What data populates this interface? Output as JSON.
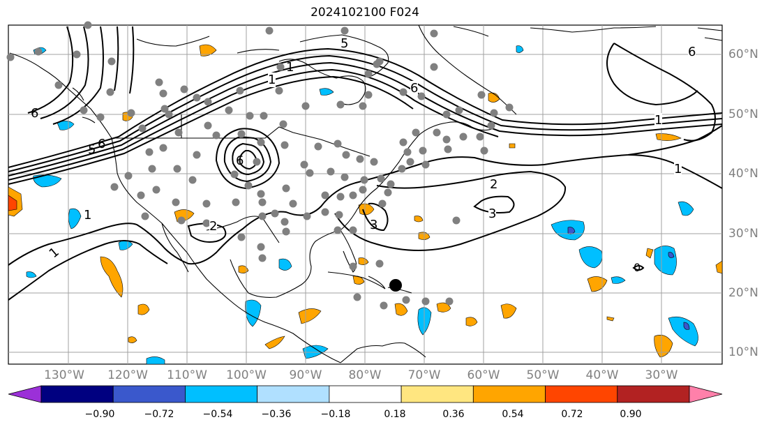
{
  "title": "2024102100 F024",
  "map": {
    "lon_labels": [
      "130°W",
      "120°W",
      "110°W",
      "100°W",
      "90°W",
      "80°W",
      "70°W",
      "60°W",
      "50°W",
      "40°W",
      "30°W"
    ],
    "lat_labels": [
      "60°N",
      "50°N",
      "40°N",
      "30°N",
      "20°N",
      "10°N"
    ],
    "contour_labels": [
      "6",
      "5",
      "1",
      "6",
      "6",
      "5",
      "6",
      "6",
      "1",
      "1",
      "2",
      "3",
      "3",
      "2",
      "1",
      "1",
      "1",
      "0"
    ],
    "colors": {
      "contour": "#000000",
      "grid": "#a0a0a0",
      "station": "#808080",
      "marker": "#000000"
    }
  },
  "colorbar": {
    "ticks": [
      "−0.90",
      "−0.72",
      "−0.54",
      "−0.36",
      "−0.18",
      "0.18",
      "0.36",
      "0.54",
      "0.72",
      "0.90"
    ],
    "colors": [
      "#9b30d8",
      "#000080",
      "#3a58cc",
      "#00bfff",
      "#b0e0ff",
      "#ffffff",
      "#ffe680",
      "#ffa500",
      "#ff4500",
      "#b22222",
      "#ff80aa"
    ]
  }
}
